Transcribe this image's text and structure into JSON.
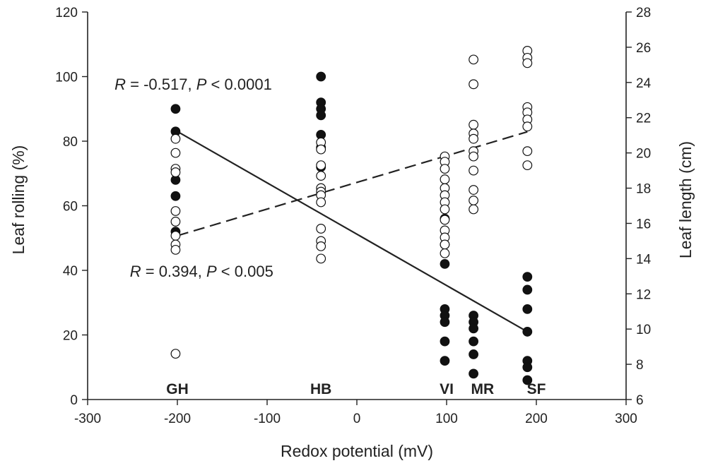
{
  "chart_data": {
    "type": "scatter",
    "xlabel": "Redox potential (mV)",
    "ylabel": "Leaf rolling (%)",
    "y2label": "Leaf length (cm)",
    "xlim": [
      -300,
      300
    ],
    "ylim": [
      0,
      120
    ],
    "y2lim": [
      6,
      28
    ],
    "x_ticks": [
      "-300",
      "-200",
      "-100",
      "0",
      "100",
      "200",
      "300"
    ],
    "y_ticks": [
      "0",
      "20",
      "40",
      "60",
      "80",
      "100",
      "120"
    ],
    "y2_ticks": [
      "6",
      "8",
      "10",
      "12",
      "14",
      "16",
      "18",
      "20",
      "22",
      "24",
      "26",
      "28"
    ],
    "grid": false,
    "sites": [
      {
        "label": "GH",
        "x": -200
      },
      {
        "label": "HB",
        "x": -40
      },
      {
        "label": "VI",
        "x": 100
      },
      {
        "label": "MR",
        "x": 140
      },
      {
        "label": "SF",
        "x": 200
      }
    ],
    "series": [
      {
        "marker": "filled-circle",
        "axis": "left",
        "points": [
          [
            -202,
            90
          ],
          [
            -202,
            83
          ],
          [
            -202,
            68
          ],
          [
            -202,
            63
          ],
          [
            -202,
            52
          ],
          [
            -40,
            100
          ],
          [
            -40,
            92
          ],
          [
            -40,
            90
          ],
          [
            -40,
            88
          ],
          [
            -40,
            82
          ],
          [
            -40,
            78
          ],
          [
            -40,
            72
          ],
          [
            98,
            56
          ],
          [
            98,
            48
          ],
          [
            98,
            42
          ],
          [
            98,
            28
          ],
          [
            98,
            26
          ],
          [
            98,
            24
          ],
          [
            98,
            18
          ],
          [
            98,
            12
          ],
          [
            130,
            26
          ],
          [
            130,
            24
          ],
          [
            130,
            22
          ],
          [
            130,
            18
          ],
          [
            130,
            14
          ],
          [
            130,
            8
          ],
          [
            190,
            38
          ],
          [
            190,
            34
          ],
          [
            190,
            28
          ],
          [
            190,
            21
          ],
          [
            190,
            12
          ],
          [
            190,
            10
          ],
          [
            190,
            6
          ]
        ]
      },
      {
        "marker": "open-circle",
        "axis": "right",
        "points": [
          [
            -202,
            20.8
          ],
          [
            -202,
            20.0
          ],
          [
            -202,
            19.1
          ],
          [
            -202,
            18.9
          ],
          [
            -202,
            16.7
          ],
          [
            -202,
            16.1
          ],
          [
            -202,
            15.3
          ],
          [
            -202,
            14.8
          ],
          [
            -202,
            14.5
          ],
          [
            -202,
            8.6
          ],
          [
            -40,
            20.6
          ],
          [
            -40,
            20.2
          ],
          [
            -40,
            19.3
          ],
          [
            -40,
            18.7
          ],
          [
            -40,
            18.0
          ],
          [
            -40,
            17.8
          ],
          [
            -40,
            17.6
          ],
          [
            -40,
            17.2
          ],
          [
            -40,
            15.7
          ],
          [
            -40,
            15.0
          ],
          [
            -40,
            14.7
          ],
          [
            -40,
            14.0
          ],
          [
            98,
            19.8
          ],
          [
            98,
            19.5
          ],
          [
            98,
            19.1
          ],
          [
            98,
            18.5
          ],
          [
            98,
            18.0
          ],
          [
            98,
            17.6
          ],
          [
            98,
            17.2
          ],
          [
            98,
            16.8
          ],
          [
            98,
            16.2
          ],
          [
            98,
            15.6
          ],
          [
            98,
            15.2
          ],
          [
            98,
            14.8
          ],
          [
            98,
            14.3
          ],
          [
            130,
            25.3
          ],
          [
            130,
            23.9
          ],
          [
            130,
            21.6
          ],
          [
            130,
            21.1
          ],
          [
            130,
            20.8
          ],
          [
            130,
            20.1
          ],
          [
            130,
            19.8
          ],
          [
            130,
            19.0
          ],
          [
            130,
            17.9
          ],
          [
            130,
            17.3
          ],
          [
            130,
            16.8
          ],
          [
            190,
            25.8
          ],
          [
            190,
            25.4
          ],
          [
            190,
            25.1
          ],
          [
            190,
            22.6
          ],
          [
            190,
            22.3
          ],
          [
            190,
            21.9
          ],
          [
            190,
            21.5
          ],
          [
            190,
            20.1
          ],
          [
            190,
            19.3
          ]
        ]
      }
    ],
    "fits": [
      {
        "style": "solid",
        "axis": "left",
        "from": [
          -200,
          83
        ],
        "to": [
          190,
          21
        ]
      },
      {
        "style": "dashed",
        "axis": "right",
        "from": [
          -200,
          15.3
        ],
        "to": [
          190,
          21.2
        ]
      }
    ],
    "annotations": [
      {
        "text": "R = -0.517, P < 0.0001",
        "italic_parts": [
          "R",
          "P"
        ],
        "at_x": -270,
        "at_y": 96
      },
      {
        "text": "R = 0.394, P < 0.005",
        "italic_parts": [
          "R",
          "P"
        ],
        "at_x": -253,
        "at_y": 38
      }
    ]
  }
}
